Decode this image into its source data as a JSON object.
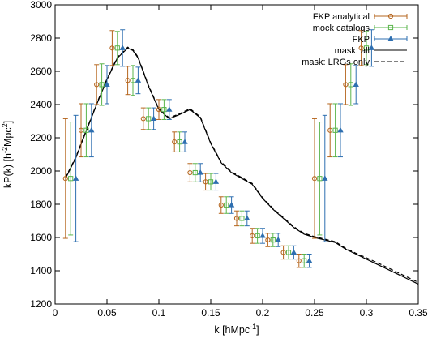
{
  "chart_data": {
    "type": "scatter",
    "xlabel": "k [hMpc",
    "xlabel_sup": "-1",
    "xlabel_end": "]",
    "ylabel_parts": [
      "kP(k) [h",
      "-2",
      "Mpc",
      "2",
      "]"
    ],
    "xlim": [
      0,
      0.35
    ],
    "ylim": [
      1200,
      3000
    ],
    "xticks": [
      0,
      0.05,
      0.1,
      0.15,
      0.2,
      0.25,
      0.3,
      0.35
    ],
    "xtick_labels": [
      "0",
      "0.05",
      "0.1",
      "0.15",
      "0.2",
      "0.25",
      "0.3",
      "0.35"
    ],
    "yticks": [
      1200,
      1400,
      1600,
      1800,
      2000,
      2200,
      2400,
      2600,
      2800,
      3000
    ],
    "ytick_labels": [
      "1200",
      "1400",
      "1600",
      "1800",
      "2000",
      "2200",
      "2400",
      "2600",
      "2800",
      "3000"
    ],
    "grid": false,
    "legend_position": "top-right",
    "series": [
      {
        "name": "FKP analytical",
        "marker": "circle",
        "color": "#b5651d",
        "x": [
          0.01,
          0.025,
          0.04,
          0.055,
          0.07,
          0.085,
          0.1,
          0.115,
          0.13,
          0.145,
          0.16,
          0.175,
          0.19,
          0.205,
          0.22,
          0.235,
          0.25,
          0.265,
          0.28,
          0.295
        ],
        "y": [
          1955,
          2245,
          2520,
          2740,
          2545,
          2315,
          2370,
          2175,
          1990,
          1935,
          1795,
          1715,
          1610,
          1585,
          1510,
          1460,
          1955,
          2245,
          2520,
          2740
        ],
        "yerr": [
          360,
          160,
          120,
          105,
          85,
          65,
          60,
          60,
          55,
          50,
          50,
          45,
          45,
          40,
          40,
          40,
          360,
          160,
          120,
          105
        ]
      },
      {
        "name": "mock catalogs",
        "marker": "square",
        "color": "#5ab54b",
        "x": [
          0.015,
          0.03,
          0.045,
          0.06,
          0.075,
          0.09,
          0.105,
          0.12,
          0.135,
          0.15,
          0.165,
          0.18,
          0.195,
          0.21,
          0.225,
          0.24,
          0.255,
          0.27,
          0.285,
          0.3
        ],
        "y": [
          1955,
          2245,
          2520,
          2740,
          2545,
          2315,
          2370,
          2175,
          1990,
          1935,
          1795,
          1715,
          1610,
          1585,
          1510,
          1460,
          1955,
          2245,
          2520,
          2740
        ],
        "yerr": [
          340,
          160,
          125,
          100,
          90,
          65,
          60,
          60,
          55,
          50,
          50,
          45,
          45,
          40,
          40,
          40,
          340,
          160,
          125,
          100
        ]
      },
      {
        "name": "FKP",
        "marker": "triangle",
        "color": "#2e6fb0",
        "x": [
          0.02,
          0.035,
          0.05,
          0.065,
          0.08,
          0.095,
          0.11,
          0.125,
          0.14,
          0.155,
          0.17,
          0.185,
          0.2,
          0.215,
          0.23,
          0.245,
          0.26,
          0.275,
          0.29,
          0.305
        ],
        "y": [
          1955,
          2245,
          2520,
          2740,
          2545,
          2315,
          2370,
          2175,
          1990,
          1935,
          1795,
          1715,
          1610,
          1585,
          1510,
          1460,
          1955,
          2245,
          2520,
          2740
        ],
        "yerr": [
          380,
          160,
          115,
          110,
          80,
          65,
          60,
          60,
          55,
          50,
          50,
          45,
          45,
          40,
          40,
          40,
          380,
          160,
          115,
          110
        ]
      },
      {
        "name": "mask: all",
        "style": "solid",
        "color": "#000000",
        "x": [
          0.01,
          0.02,
          0.03,
          0.04,
          0.05,
          0.06,
          0.07,
          0.075,
          0.08,
          0.09,
          0.1,
          0.11,
          0.12,
          0.13,
          0.14,
          0.15,
          0.16,
          0.17,
          0.18,
          0.19,
          0.2,
          0.21,
          0.22,
          0.23,
          0.24,
          0.25,
          0.26,
          0.27,
          0.28,
          0.29,
          0.3,
          0.31,
          0.32,
          0.33,
          0.34,
          0.35
        ],
        "y": [
          1955,
          2080,
          2240,
          2400,
          2550,
          2680,
          2740,
          2725,
          2680,
          2510,
          2370,
          2315,
          2340,
          2370,
          2320,
          2165,
          2050,
          1990,
          1955,
          1920,
          1835,
          1770,
          1715,
          1660,
          1620,
          1600,
          1585,
          1570,
          1530,
          1500,
          1470,
          1440,
          1410,
          1380,
          1350,
          1320
        ]
      },
      {
        "name": "mask: LRGs only",
        "style": "dashed",
        "color": "#000000",
        "x": [
          0.01,
          0.02,
          0.03,
          0.04,
          0.05,
          0.06,
          0.07,
          0.075,
          0.08,
          0.09,
          0.1,
          0.11,
          0.12,
          0.13,
          0.14,
          0.15,
          0.16,
          0.17,
          0.18,
          0.19,
          0.2,
          0.21,
          0.22,
          0.23,
          0.24,
          0.25,
          0.26,
          0.27,
          0.28,
          0.29,
          0.3,
          0.31,
          0.32,
          0.33,
          0.34,
          0.35
        ],
        "y": [
          1960,
          2085,
          2245,
          2405,
          2555,
          2685,
          2745,
          2730,
          2685,
          2515,
          2375,
          2320,
          2345,
          2375,
          2325,
          2170,
          2055,
          1995,
          1960,
          1925,
          1840,
          1775,
          1720,
          1665,
          1625,
          1605,
          1590,
          1575,
          1535,
          1505,
          1478,
          1450,
          1420,
          1390,
          1360,
          1330
        ]
      }
    ]
  }
}
